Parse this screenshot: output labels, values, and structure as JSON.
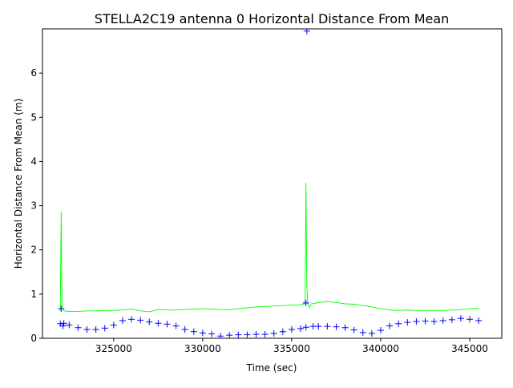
{
  "chart_data": {
    "type": "scatter",
    "title": "STELLA2C19 antenna 0 Horizontal Distance From Mean",
    "xlabel": "Time (sec)",
    "ylabel": "Horizontal Distance From Mean (m)",
    "xlim": [
      321000,
      346800
    ],
    "ylim": [
      0,
      7
    ],
    "xticks": [
      325000,
      330000,
      335000,
      340000,
      345000
    ],
    "xtick_labels": [
      "325000",
      "330000",
      "335000",
      "340000",
      "345000"
    ],
    "yticks": [
      0,
      1,
      2,
      3,
      4,
      5,
      6
    ],
    "ytick_labels": [
      "0",
      "1",
      "2",
      "3",
      "4",
      "5",
      "6"
    ],
    "grid": false,
    "colors": {
      "points": "#0000ff",
      "line": "#00ff00",
      "axes": "#000000"
    },
    "series": [
      {
        "marker": "line",
        "color": "#00ff00",
        "x": [
          322000,
          322050,
          322100,
          322200,
          322500,
          323000,
          323500,
          324000,
          324500,
          325000,
          325500,
          326000,
          326500,
          327000,
          327500,
          328000,
          328500,
          329000,
          329500,
          330000,
          330500,
          331000,
          331500,
          332000,
          332500,
          333000,
          333500,
          334000,
          334500,
          335000,
          335500,
          335750,
          335800,
          335850,
          335900,
          336000,
          336100,
          336300,
          336500,
          337000,
          337500,
          338000,
          338500,
          339000,
          339500,
          340000,
          340500,
          341000,
          341500,
          342000,
          342500,
          343000,
          343500,
          344000,
          344500,
          345000,
          345500
        ],
        "y": [
          0.62,
          2.87,
          0.7,
          0.62,
          0.61,
          0.61,
          0.62,
          0.62,
          0.63,
          0.63,
          0.64,
          0.66,
          0.62,
          0.6,
          0.65,
          0.64,
          0.64,
          0.65,
          0.66,
          0.67,
          0.66,
          0.65,
          0.64,
          0.67,
          0.69,
          0.71,
          0.72,
          0.73,
          0.74,
          0.75,
          0.76,
          0.78,
          3.52,
          1.2,
          0.78,
          0.7,
          0.78,
          0.79,
          0.81,
          0.83,
          0.81,
          0.78,
          0.77,
          0.74,
          0.71,
          0.67,
          0.64,
          0.63,
          0.64,
          0.63,
          0.63,
          0.63,
          0.63,
          0.64,
          0.65,
          0.67,
          0.68
        ]
      },
      {
        "marker": "+",
        "color": "#0000ff",
        "x": [
          322000,
          322200,
          322500,
          323000,
          323500,
          324000,
          324500,
          325000,
          325500,
          326000,
          326500,
          327000,
          327500,
          328000,
          328500,
          329000,
          329500,
          330000,
          330500,
          331000,
          331500,
          332000,
          332500,
          333000,
          333500,
          334000,
          334500,
          335000,
          335500,
          335800,
          336200,
          336500,
          337000,
          337500,
          338000,
          338500,
          339000,
          339500,
          340000,
          340500,
          341000,
          341500,
          342000,
          342500,
          343000,
          343500,
          344000,
          344500,
          345000,
          345500,
          322050,
          335800,
          335850,
          322150
        ],
        "y": [
          0.33,
          0.34,
          0.3,
          0.24,
          0.2,
          0.2,
          0.23,
          0.3,
          0.4,
          0.43,
          0.41,
          0.37,
          0.34,
          0.32,
          0.28,
          0.2,
          0.15,
          0.12,
          0.1,
          0.05,
          0.07,
          0.08,
          0.08,
          0.09,
          0.09,
          0.11,
          0.15,
          0.2,
          0.22,
          0.25,
          0.27,
          0.27,
          0.27,
          0.26,
          0.24,
          0.19,
          0.13,
          0.11,
          0.18,
          0.28,
          0.33,
          0.36,
          0.38,
          0.39,
          0.38,
          0.4,
          0.42,
          0.45,
          0.43,
          0.4,
          0.67,
          0.8,
          6.95,
          0.28
        ]
      }
    ]
  }
}
